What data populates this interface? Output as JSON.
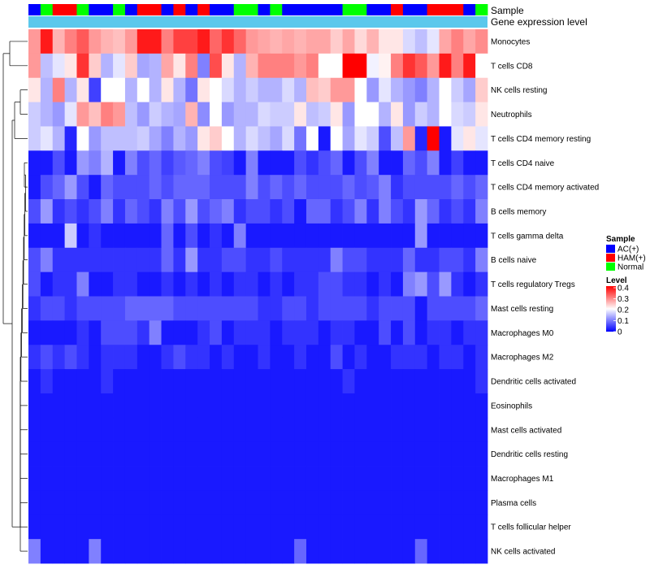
{
  "chart_data": {
    "type": "heatmap",
    "annotation_labels": {
      "sample": "Sample",
      "gene_expression": "Gene expression level"
    },
    "legends": {
      "sample": {
        "title": "Sample",
        "entries": [
          {
            "label": "AC(+)",
            "color": "#0000ff"
          },
          {
            "label": "HAM(+)",
            "color": "#ff0000"
          },
          {
            "label": "Normal",
            "color": "#00ff00"
          }
        ]
      },
      "level": {
        "title": "Level",
        "ticks": [
          "0.4",
          "0.3",
          "0.2",
          "0.1",
          "0"
        ],
        "range": [
          0,
          0.4
        ],
        "colors": {
          "low": "#0000ff",
          "mid": "#ffffff",
          "high": "#ff0000"
        }
      }
    },
    "gene_expression_color": "#5bc8ec",
    "sample_groups": [
      0,
      2,
      1,
      1,
      2,
      0,
      0,
      2,
      0,
      1,
      1,
      0,
      1,
      0,
      1,
      0,
      0,
      2,
      2,
      0,
      2,
      0,
      0,
      0,
      0,
      0,
      2,
      2,
      0,
      0,
      1,
      0,
      0,
      1,
      1,
      1,
      0,
      2
    ],
    "rows": [
      "Monocytes",
      "T cells CD8",
      "NK cells resting",
      "Neutrophils",
      "T cells CD4 memory resting",
      "T cells CD4 naive",
      "T cells CD4 memory activated",
      "B cells memory",
      "T cells gamma delta",
      "B cells naive",
      "T cells regulatory  Tregs",
      "Mast cells resting",
      "Macrophages M0",
      "Macrophages M2",
      "Dendritic cells activated",
      "Eosinophils",
      "Mast cells activated",
      "Dendritic cells resting",
      "Macrophages M1",
      "Plasma cells",
      "T cells follicular helper",
      "NK cells activated"
    ],
    "values": [
      [
        0.28,
        0.38,
        0.26,
        0.3,
        0.33,
        0.28,
        0.26,
        0.25,
        0.28,
        0.38,
        0.38,
        0.3,
        0.35,
        0.35,
        0.38,
        0.32,
        0.36,
        0.32,
        0.28,
        0.27,
        0.26,
        0.27,
        0.26,
        0.27,
        0.27,
        0.24,
        0.27,
        0.23,
        0.26,
        0.22,
        0.22,
        0.17,
        0.15,
        0.18,
        0.27,
        0.3,
        0.27,
        0.29
      ],
      [
        0.28,
        0.15,
        0.18,
        0.22,
        0.36,
        0.24,
        0.14,
        0.18,
        0.24,
        0.13,
        0.14,
        0.27,
        0.22,
        0.3,
        0.1,
        0.34,
        0.22,
        0.14,
        0.26,
        0.3,
        0.3,
        0.3,
        0.28,
        0.3,
        0.2,
        0.2,
        0.4,
        0.4,
        0.19,
        0.21,
        0.3,
        0.36,
        0.33,
        0.28,
        0.38,
        0.3,
        0.38,
        0.2
      ],
      [
        0.22,
        0.14,
        0.3,
        0.14,
        0.22,
        0.05,
        0.2,
        0.2,
        0.14,
        0.2,
        0.14,
        0.22,
        0.14,
        0.09,
        0.22,
        0.2,
        0.17,
        0.14,
        0.16,
        0.14,
        0.14,
        0.17,
        0.14,
        0.25,
        0.24,
        0.28,
        0.28,
        0.2,
        0.12,
        0.18,
        0.14,
        0.12,
        0.1,
        0.14,
        0.2,
        0.16,
        0.13,
        0.24
      ],
      [
        0.16,
        0.14,
        0.12,
        0.18,
        0.28,
        0.25,
        0.3,
        0.28,
        0.15,
        0.12,
        0.16,
        0.14,
        0.13,
        0.26,
        0.11,
        0.2,
        0.12,
        0.14,
        0.14,
        0.17,
        0.16,
        0.16,
        0.22,
        0.15,
        0.16,
        0.22,
        0.12,
        0.2,
        0.2,
        0.14,
        0.22,
        0.12,
        0.16,
        0.14,
        0.2,
        0.17,
        0.16,
        0.22
      ],
      [
        0.16,
        0.18,
        0.14,
        0.03,
        0.2,
        0.12,
        0.15,
        0.15,
        0.15,
        0.16,
        0.13,
        0.1,
        0.14,
        0.12,
        0.22,
        0.24,
        0.2,
        0.14,
        0.17,
        0.15,
        0.13,
        0.17,
        0.09,
        0.2,
        0.02,
        0.2,
        0.13,
        0.18,
        0.16,
        0.06,
        0.15,
        0.28,
        0.03,
        0.4,
        0.02,
        0.18,
        0.22,
        0.18
      ],
      [
        0.02,
        0.02,
        0.06,
        0.02,
        0.12,
        0.1,
        0.14,
        0.02,
        0.1,
        0.06,
        0.08,
        0.05,
        0.07,
        0.08,
        0.1,
        0.06,
        0.05,
        0.02,
        0.1,
        0.02,
        0.02,
        0.02,
        0.06,
        0.04,
        0.06,
        0.08,
        0.02,
        0.06,
        0.1,
        0.02,
        0.02,
        0.08,
        0.06,
        0.1,
        0.02,
        0.05,
        0.02,
        0.02
      ],
      [
        0.02,
        0.06,
        0.08,
        0.12,
        0.06,
        0.02,
        0.08,
        0.06,
        0.06,
        0.06,
        0.08,
        0.06,
        0.08,
        0.08,
        0.08,
        0.06,
        0.06,
        0.06,
        0.1,
        0.06,
        0.08,
        0.06,
        0.08,
        0.06,
        0.06,
        0.06,
        0.08,
        0.06,
        0.07,
        0.1,
        0.04,
        0.06,
        0.06,
        0.06,
        0.06,
        0.08,
        0.06,
        0.08
      ],
      [
        0.06,
        0.12,
        0.04,
        0.06,
        0.04,
        0.06,
        0.1,
        0.04,
        0.08,
        0.06,
        0.04,
        0.1,
        0.06,
        0.12,
        0.06,
        0.08,
        0.1,
        0.04,
        0.06,
        0.06,
        0.04,
        0.06,
        0.02,
        0.08,
        0.08,
        0.04,
        0.06,
        0.1,
        0.04,
        0.1,
        0.06,
        0.04,
        0.12,
        0.08,
        0.04,
        0.06,
        0.04,
        0.1
      ],
      [
        0.02,
        0.02,
        0.02,
        0.16,
        0.02,
        0.04,
        0.02,
        0.02,
        0.02,
        0.02,
        0.02,
        0.08,
        0.02,
        0.06,
        0.02,
        0.04,
        0.02,
        0.1,
        0.02,
        0.02,
        0.02,
        0.02,
        0.02,
        0.02,
        0.02,
        0.02,
        0.02,
        0.02,
        0.02,
        0.02,
        0.02,
        0.02,
        0.12,
        0.02,
        0.02,
        0.02,
        0.02,
        0.02
      ],
      [
        0.06,
        0.1,
        0.04,
        0.04,
        0.04,
        0.04,
        0.04,
        0.04,
        0.04,
        0.04,
        0.04,
        0.08,
        0.04,
        0.12,
        0.04,
        0.04,
        0.06,
        0.06,
        0.04,
        0.04,
        0.06,
        0.04,
        0.04,
        0.04,
        0.04,
        0.1,
        0.06,
        0.06,
        0.04,
        0.04,
        0.04,
        0.08,
        0.04,
        0.04,
        0.06,
        0.06,
        0.04,
        0.1
      ],
      [
        0.06,
        0.02,
        0.04,
        0.04,
        0.1,
        0.02,
        0.02,
        0.04,
        0.04,
        0.02,
        0.02,
        0.04,
        0.02,
        0.04,
        0.02,
        0.04,
        0.02,
        0.04,
        0.04,
        0.02,
        0.04,
        0.02,
        0.04,
        0.04,
        0.06,
        0.06,
        0.04,
        0.04,
        0.02,
        0.04,
        0.02,
        0.1,
        0.12,
        0.06,
        0.12,
        0.04,
        0.02,
        0.04
      ],
      [
        0.04,
        0.06,
        0.06,
        0.04,
        0.06,
        0.06,
        0.06,
        0.06,
        0.08,
        0.08,
        0.08,
        0.08,
        0.06,
        0.06,
        0.06,
        0.06,
        0.06,
        0.06,
        0.06,
        0.04,
        0.04,
        0.06,
        0.06,
        0.04,
        0.06,
        0.06,
        0.06,
        0.06,
        0.04,
        0.06,
        0.06,
        0.06,
        0.02,
        0.06,
        0.06,
        0.06,
        0.06,
        0.08
      ],
      [
        0.02,
        0.02,
        0.02,
        0.02,
        0.04,
        0.02,
        0.06,
        0.06,
        0.06,
        0.04,
        0.1,
        0.02,
        0.02,
        0.02,
        0.04,
        0.06,
        0.02,
        0.04,
        0.04,
        0.04,
        0.02,
        0.04,
        0.04,
        0.04,
        0.02,
        0.04,
        0.04,
        0.02,
        0.02,
        0.06,
        0.02,
        0.06,
        0.02,
        0.04,
        0.04,
        0.02,
        0.04,
        0.04
      ],
      [
        0.04,
        0.06,
        0.04,
        0.06,
        0.04,
        0.02,
        0.04,
        0.04,
        0.04,
        0.02,
        0.02,
        0.04,
        0.06,
        0.04,
        0.04,
        0.02,
        0.04,
        0.02,
        0.02,
        0.04,
        0.02,
        0.02,
        0.04,
        0.02,
        0.02,
        0.06,
        0.02,
        0.04,
        0.02,
        0.02,
        0.04,
        0.04,
        0.04,
        0.02,
        0.04,
        0.04,
        0.02,
        0.04
      ],
      [
        0.02,
        0.04,
        0.02,
        0.02,
        0.02,
        0.02,
        0.04,
        0.02,
        0.02,
        0.02,
        0.02,
        0.02,
        0.02,
        0.02,
        0.02,
        0.02,
        0.02,
        0.02,
        0.02,
        0.02,
        0.02,
        0.02,
        0.02,
        0.02,
        0.02,
        0.02,
        0.04,
        0.02,
        0.02,
        0.02,
        0.02,
        0.02,
        0.02,
        0.02,
        0.02,
        0.02,
        0.02,
        0.04
      ],
      [
        0.02,
        0.02,
        0.02,
        0.02,
        0.02,
        0.02,
        0.02,
        0.02,
        0.02,
        0.02,
        0.02,
        0.02,
        0.02,
        0.02,
        0.02,
        0.02,
        0.02,
        0.02,
        0.02,
        0.02,
        0.02,
        0.02,
        0.02,
        0.02,
        0.02,
        0.02,
        0.02,
        0.02,
        0.02,
        0.02,
        0.02,
        0.02,
        0.02,
        0.02,
        0.02,
        0.02,
        0.02,
        0.02
      ],
      [
        0.02,
        0.02,
        0.02,
        0.02,
        0.02,
        0.02,
        0.02,
        0.02,
        0.02,
        0.02,
        0.02,
        0.02,
        0.02,
        0.02,
        0.02,
        0.02,
        0.02,
        0.02,
        0.02,
        0.02,
        0.02,
        0.02,
        0.02,
        0.02,
        0.02,
        0.02,
        0.02,
        0.02,
        0.02,
        0.02,
        0.02,
        0.02,
        0.02,
        0.02,
        0.02,
        0.02,
        0.02,
        0.02
      ],
      [
        0.02,
        0.02,
        0.02,
        0.02,
        0.02,
        0.02,
        0.02,
        0.02,
        0.02,
        0.02,
        0.02,
        0.02,
        0.02,
        0.02,
        0.02,
        0.02,
        0.02,
        0.02,
        0.02,
        0.02,
        0.02,
        0.02,
        0.02,
        0.02,
        0.02,
        0.02,
        0.02,
        0.02,
        0.02,
        0.02,
        0.02,
        0.02,
        0.02,
        0.02,
        0.02,
        0.02,
        0.02,
        0.02
      ],
      [
        0.02,
        0.02,
        0.02,
        0.02,
        0.02,
        0.02,
        0.02,
        0.02,
        0.02,
        0.02,
        0.02,
        0.02,
        0.02,
        0.02,
        0.02,
        0.02,
        0.02,
        0.02,
        0.02,
        0.02,
        0.02,
        0.02,
        0.02,
        0.02,
        0.02,
        0.02,
        0.02,
        0.02,
        0.02,
        0.02,
        0.02,
        0.02,
        0.02,
        0.02,
        0.02,
        0.02,
        0.02,
        0.02
      ],
      [
        0.02,
        0.02,
        0.02,
        0.02,
        0.02,
        0.02,
        0.02,
        0.02,
        0.02,
        0.02,
        0.02,
        0.02,
        0.02,
        0.02,
        0.02,
        0.02,
        0.02,
        0.02,
        0.02,
        0.02,
        0.02,
        0.02,
        0.02,
        0.02,
        0.02,
        0.02,
        0.02,
        0.02,
        0.02,
        0.02,
        0.02,
        0.02,
        0.02,
        0.02,
        0.02,
        0.02,
        0.02,
        0.02
      ],
      [
        0.02,
        0.02,
        0.02,
        0.02,
        0.02,
        0.02,
        0.02,
        0.02,
        0.02,
        0.02,
        0.02,
        0.02,
        0.02,
        0.02,
        0.02,
        0.02,
        0.02,
        0.02,
        0.02,
        0.02,
        0.02,
        0.02,
        0.02,
        0.02,
        0.02,
        0.02,
        0.02,
        0.02,
        0.02,
        0.02,
        0.02,
        0.02,
        0.02,
        0.02,
        0.02,
        0.02,
        0.02,
        0.02
      ],
      [
        0.1,
        0.02,
        0.02,
        0.02,
        0.02,
        0.1,
        0.02,
        0.02,
        0.02,
        0.02,
        0.02,
        0.02,
        0.02,
        0.02,
        0.02,
        0.02,
        0.02,
        0.02,
        0.02,
        0.02,
        0.02,
        0.02,
        0.08,
        0.02,
        0.02,
        0.02,
        0.02,
        0.02,
        0.02,
        0.02,
        0.02,
        0.02,
        0.08,
        0.02,
        0.02,
        0.02,
        0.02,
        0.02
      ]
    ]
  }
}
